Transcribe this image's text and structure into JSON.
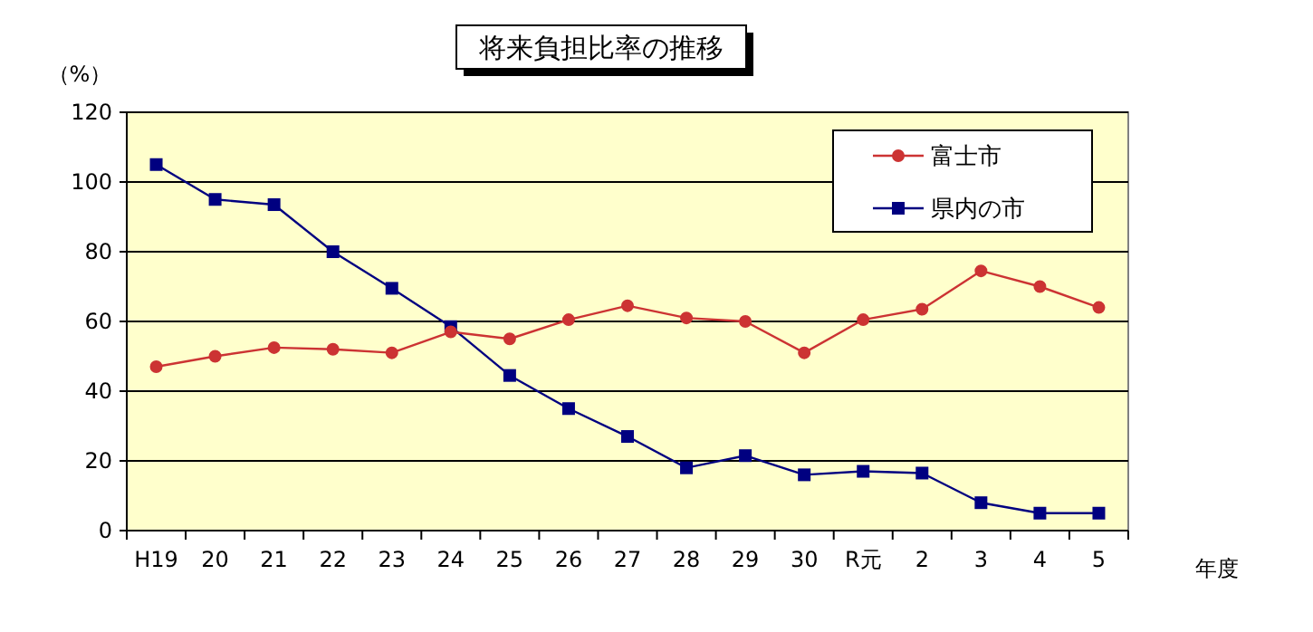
{
  "chart_data": {
    "type": "line",
    "title": "将来負担比率の推移",
    "ylabel": "（%）",
    "xlabel": "年度",
    "categories": [
      "H19",
      "20",
      "21",
      "22",
      "23",
      "24",
      "25",
      "26",
      "27",
      "28",
      "29",
      "30",
      "R元",
      "2",
      "3",
      "4",
      "5"
    ],
    "series": [
      {
        "name": "富士市",
        "color": "#cc3333",
        "marker": "circle",
        "values": [
          47,
          50,
          52.5,
          52,
          51,
          57,
          55,
          60.5,
          64.5,
          61,
          60,
          51,
          60.5,
          63.5,
          74.5,
          70,
          64
        ]
      },
      {
        "name": "県内の市",
        "color": "#000080",
        "marker": "square",
        "values": [
          105,
          95,
          93.5,
          80,
          69.5,
          58.5,
          44.5,
          35,
          27,
          18,
          21.5,
          16,
          17,
          16.5,
          8,
          5,
          5
        ]
      }
    ],
    "ylim": [
      0,
      120
    ],
    "yticks": [
      0,
      20,
      40,
      60,
      80,
      100,
      120
    ],
    "grid": "y",
    "legend": "top right",
    "line_style": "solid"
  }
}
